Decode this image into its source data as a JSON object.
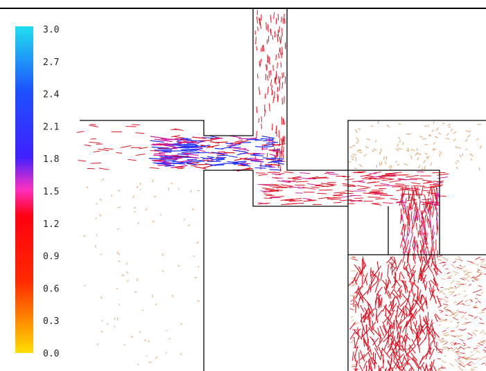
{
  "colorbar": {
    "ticks": [
      "3.0",
      "2.7",
      "2.4",
      "2.1",
      "1.8",
      "1.5",
      "1.2",
      "0.9",
      "0.6",
      "0.3",
      "0.0"
    ],
    "min": 0.0,
    "max": 3.0,
    "colors": [
      {
        "at": 0.0,
        "color": "#ffe000"
      },
      {
        "at": 0.08,
        "color": "#ff9a00"
      },
      {
        "at": 0.22,
        "color": "#ff2a00"
      },
      {
        "at": 0.42,
        "color": "#ff0010"
      },
      {
        "at": 0.5,
        "color": "#ff30c0"
      },
      {
        "at": 0.6,
        "color": "#4020ff"
      },
      {
        "at": 0.8,
        "color": "#1e50ff"
      },
      {
        "at": 1.0,
        "color": "#20e0f0"
      }
    ]
  },
  "field": {
    "colors": {
      "outline": "#000000",
      "slow": "#e0a060",
      "medium": "#e01020",
      "fast": "#d020a0",
      "jet": "#2030ff"
    }
  }
}
